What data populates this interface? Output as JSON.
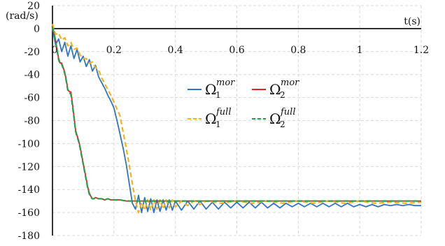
{
  "chart_data": {
    "type": "line",
    "title": "",
    "xlabel": "t(s)",
    "ylabel": "(rad/s)",
    "xlim": [
      0,
      1.2
    ],
    "ylim": [
      -180,
      20
    ],
    "x_ticks": [
      "0",
      "0.2",
      "0.4",
      "0.6",
      "0.8",
      "1",
      "1.2"
    ],
    "y_ticks": [
      "20",
      "0",
      "-20",
      "-40",
      "-60",
      "-80",
      "-100",
      "-120",
      "-140",
      "-160",
      "-180"
    ],
    "grid": true,
    "legend_position": "center",
    "series": [
      {
        "name": "Ω1 mor",
        "legend": {
          "symbol": "Ω",
          "sub": "1",
          "sup": "mor"
        },
        "color": "#2e75c8",
        "dash": "solid",
        "x": [
          0,
          0.01,
          0.02,
          0.03,
          0.04,
          0.05,
          0.06,
          0.07,
          0.08,
          0.09,
          0.1,
          0.11,
          0.12,
          0.13,
          0.14,
          0.15,
          0.16,
          0.17,
          0.18,
          0.19,
          0.2,
          0.21,
          0.22,
          0.23,
          0.24,
          0.25,
          0.26,
          0.27,
          0.28,
          0.29,
          0.3,
          0.31,
          0.32,
          0.33,
          0.34,
          0.35,
          0.36,
          0.37,
          0.38,
          0.39,
          0.4,
          0.42,
          0.44,
          0.46,
          0.48,
          0.5,
          0.52,
          0.54,
          0.56,
          0.58,
          0.6,
          0.62,
          0.64,
          0.66,
          0.68,
          0.7,
          0.72,
          0.74,
          0.76,
          0.78,
          0.8,
          0.82,
          0.84,
          0.86,
          0.88,
          0.9,
          0.92,
          0.94,
          0.96,
          0.98,
          1.0,
          1.02,
          1.04,
          1.06,
          1.08,
          1.1,
          1.12,
          1.14,
          1.16,
          1.18,
          1.2
        ],
        "y": [
          0,
          -14,
          -9,
          -20,
          -12,
          -24,
          -15,
          -26,
          -18,
          -29,
          -24,
          -33,
          -27,
          -37,
          -32,
          -42,
          -47,
          -52,
          -58,
          -63,
          -69,
          -80,
          -92,
          -104,
          -118,
          -135,
          -152,
          -157,
          -145,
          -160,
          -147,
          -159,
          -148,
          -160,
          -149,
          -159,
          -149,
          -158,
          -149,
          -158,
          -150,
          -158,
          -150,
          -157,
          -150,
          -157,
          -151,
          -157,
          -151,
          -156,
          -151,
          -156,
          -151,
          -156,
          -151,
          -156,
          -152,
          -156,
          -152,
          -155,
          -152,
          -155,
          -152,
          -155,
          -152,
          -155,
          -152,
          -155,
          -152,
          -155,
          -153,
          -155,
          -153,
          -155,
          -153,
          -154,
          -153,
          -154,
          -153,
          -154,
          -154
        ]
      },
      {
        "name": "Ω2 mor",
        "legend": {
          "symbol": "Ω",
          "sub": "2",
          "sup": "mor"
        },
        "color": "#e02424",
        "dash": "solid",
        "x": [
          0,
          0.005,
          0.01,
          0.015,
          0.02,
          0.025,
          0.03,
          0.035,
          0.04,
          0.045,
          0.05,
          0.055,
          0.06,
          0.065,
          0.07,
          0.075,
          0.08,
          0.085,
          0.09,
          0.095,
          0.1,
          0.105,
          0.11,
          0.115,
          0.12,
          0.125,
          0.13,
          0.135,
          0.14,
          0.15,
          0.16,
          0.17,
          0.18,
          0.19,
          0.2,
          0.22,
          0.24,
          0.26,
          0.28,
          0.3,
          0.4,
          0.5,
          0.6,
          0.7,
          0.8,
          0.9,
          1.0,
          1.1,
          1.2
        ],
        "y": [
          0,
          -3,
          -10,
          -18,
          -26,
          -30,
          -30,
          -34,
          -38,
          -45,
          -53,
          -55,
          -55,
          -65,
          -76,
          -88,
          -93,
          -97,
          -103,
          -110,
          -117,
          -124,
          -131,
          -138,
          -143,
          -146,
          -148,
          -148,
          -147,
          -148,
          -148,
          -149,
          -148,
          -149,
          -149,
          -149,
          -150,
          -150,
          -150,
          -150,
          -150,
          -150,
          -150,
          -150,
          -150,
          -150,
          -150,
          -150,
          -150
        ]
      },
      {
        "name": "Ω1 full",
        "legend": {
          "symbol": "Ω",
          "sub": "1",
          "sup": "full"
        },
        "color": "#f2b21c",
        "dash": "dashed",
        "x": [
          0,
          0.01,
          0.02,
          0.03,
          0.04,
          0.05,
          0.06,
          0.07,
          0.08,
          0.09,
          0.1,
          0.11,
          0.12,
          0.13,
          0.14,
          0.15,
          0.16,
          0.17,
          0.18,
          0.19,
          0.2,
          0.21,
          0.22,
          0.23,
          0.24,
          0.25,
          0.26,
          0.27,
          0.28,
          0.29,
          0.3,
          0.31,
          0.32,
          0.33,
          0.34,
          0.35,
          0.36,
          0.37,
          0.38,
          0.39,
          0.4,
          0.42,
          0.44,
          0.46,
          0.48,
          0.5,
          0.55,
          0.6,
          0.65,
          0.7,
          0.75,
          0.8,
          0.85,
          0.9,
          0.95,
          1.0,
          1.05,
          1.1,
          1.15,
          1.2
        ],
        "y": [
          4,
          -5,
          -4,
          -10,
          -8,
          -15,
          -12,
          -18,
          -17,
          -23,
          -26,
          -26,
          -30,
          -29,
          -34,
          -36,
          -43,
          -48,
          -53,
          -58,
          -64,
          -70,
          -76,
          -90,
          -104,
          -119,
          -135,
          -150,
          -160,
          -151,
          -158,
          -149,
          -158,
          -149,
          -157,
          -149,
          -157,
          -149,
          -156,
          -149,
          -155,
          -150,
          -154,
          -150,
          -153,
          -150,
          -152,
          -150,
          -152,
          -150,
          -152,
          -150,
          -152,
          -150,
          -152,
          -150,
          -152,
          -151,
          -152,
          -151
        ]
      },
      {
        "name": "Ω2 full",
        "legend": {
          "symbol": "Ω",
          "sub": "2",
          "sup": "full"
        },
        "color": "#1fa34a",
        "dash": "dashed",
        "x": [
          0,
          0.005,
          0.01,
          0.015,
          0.02,
          0.025,
          0.03,
          0.035,
          0.04,
          0.045,
          0.05,
          0.055,
          0.06,
          0.065,
          0.07,
          0.075,
          0.08,
          0.085,
          0.09,
          0.095,
          0.1,
          0.105,
          0.11,
          0.115,
          0.12,
          0.125,
          0.13,
          0.135,
          0.14,
          0.15,
          0.16,
          0.17,
          0.18,
          0.19,
          0.2,
          0.22,
          0.24,
          0.26,
          0.28,
          0.3,
          0.4,
          0.5,
          0.6,
          0.7,
          0.8,
          0.9,
          1.0,
          1.1,
          1.2
        ],
        "y": [
          1,
          -4,
          -11,
          -19,
          -27,
          -31,
          -31,
          -35,
          -39,
          -46,
          -54,
          -56,
          -57,
          -67,
          -77,
          -89,
          -94,
          -98,
          -104,
          -111,
          -118,
          -125,
          -132,
          -139,
          -144,
          -147,
          -148,
          -148,
          -147,
          -148,
          -148,
          -149,
          -148,
          -149,
          -149,
          -149,
          -150,
          -150,
          -150,
          -150,
          -150,
          -150,
          -150,
          -150,
          -150,
          -150,
          -150,
          -150,
          -150
        ]
      }
    ]
  }
}
